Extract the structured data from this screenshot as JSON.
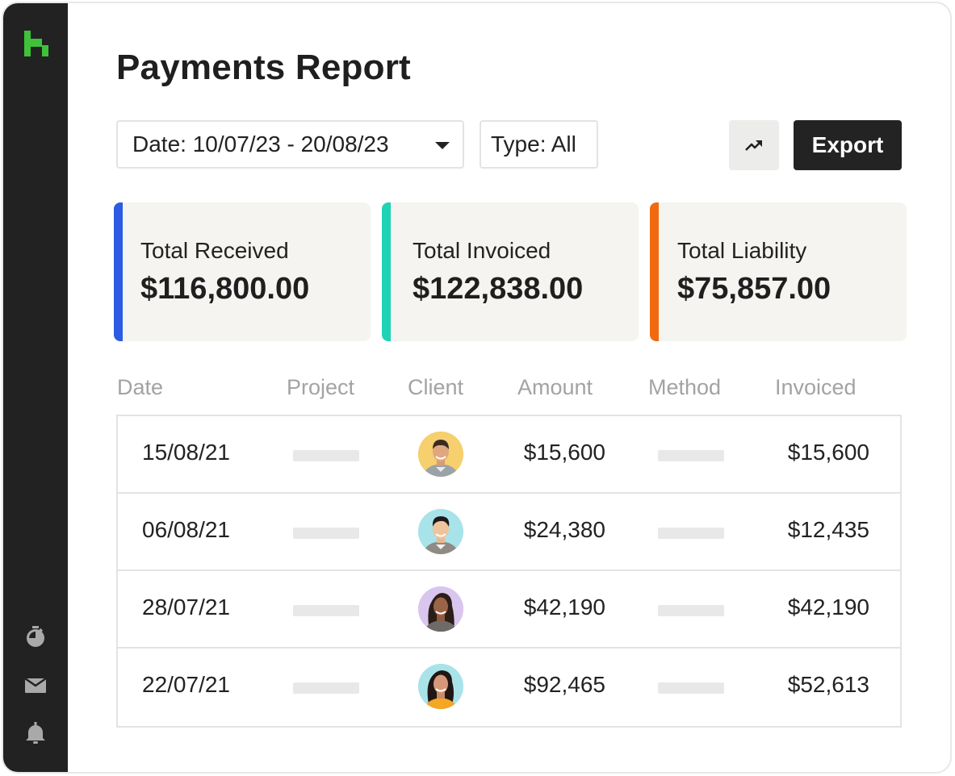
{
  "page": {
    "title": "Payments Report"
  },
  "sidebar": {
    "logo": "house-logo",
    "icons": [
      "timer-icon",
      "inbox-icon",
      "bell-icon"
    ]
  },
  "filters": {
    "date_label": "Date: 10/07/23 - 20/08/23",
    "type_label": "Type: All"
  },
  "toolbar": {
    "trend_icon": "trend-up-icon",
    "export_label": "Export"
  },
  "summary": [
    {
      "label": "Total Received",
      "value": "$116,800.00",
      "accent": "#2d5be3"
    },
    {
      "label": "Total Invoiced",
      "value": "$122,838.00",
      "accent": "#1ed3b4"
    },
    {
      "label": "Total Liability",
      "value": "$75,857.00",
      "accent": "#f06a10"
    }
  ],
  "table": {
    "headers": [
      "Date",
      "Project",
      "Client",
      "Amount",
      "Method",
      "Invoiced"
    ],
    "rows": [
      {
        "date": "15/08/21",
        "amount": "$15,600",
        "invoiced": "$15,600",
        "avatar_bg": "#f6cf6e"
      },
      {
        "date": "06/08/21",
        "amount": "$24,380",
        "invoiced": "$12,435",
        "avatar_bg": "#a9e3ea"
      },
      {
        "date": "28/07/21",
        "amount": "$42,190",
        "invoiced": "$42,190",
        "avatar_bg": "#d9c6ee"
      },
      {
        "date": "22/07/21",
        "amount": "$92,465",
        "invoiced": "$52,613",
        "avatar_bg": "#a9e3ea"
      }
    ]
  },
  "colors": {
    "brand": "#3fc23a",
    "sidebar": "#222222"
  }
}
